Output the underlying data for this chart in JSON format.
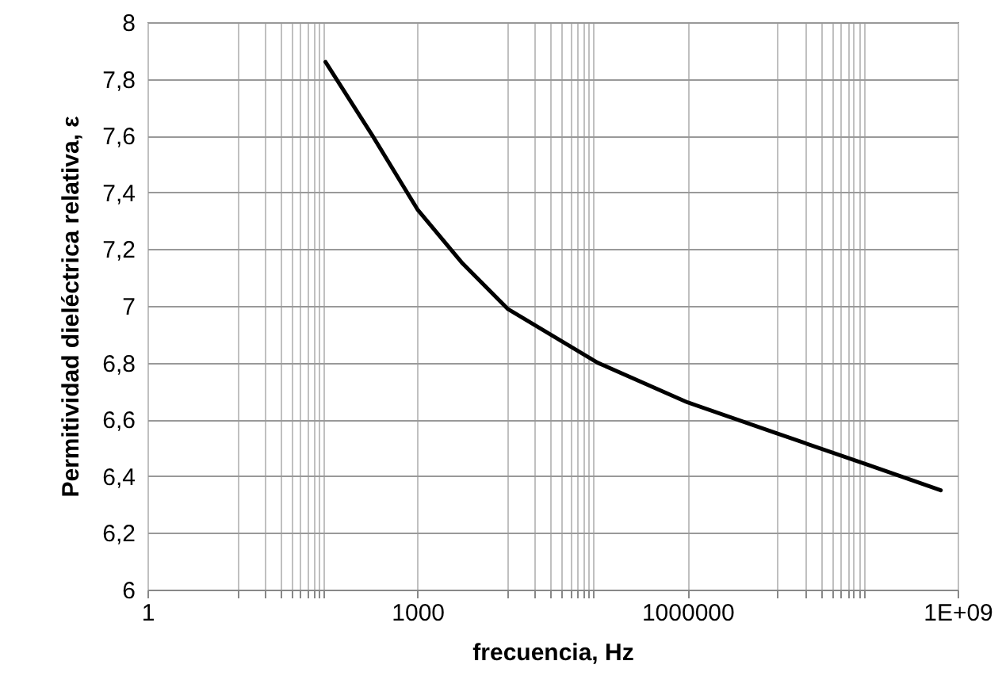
{
  "chart_data": {
    "type": "line",
    "xlabel": "frecuencia, Hz",
    "ylabel": "Permitividad dieléctrica relativa, ε",
    "x": [
      95,
      316,
      1000,
      3162,
      10000,
      100000,
      1000000,
      10000000,
      100000000,
      650000000
    ],
    "series": [
      {
        "color": "#000000",
        "values": [
          7.86,
          7.6,
          7.34,
          7.15,
          6.99,
          6.8,
          6.66,
          6.55,
          6.44,
          6.35
        ]
      }
    ],
    "log": "x",
    "xlim": [
      1,
      1000000000
    ],
    "ylim": [
      6,
      8
    ],
    "xticks": [
      1,
      {
        "value": 10,
        "label": null
      },
      {
        "value": 20,
        "label": null
      },
      {
        "value": 30,
        "label": null
      },
      {
        "value": 40,
        "label": null
      },
      {
        "value": 50,
        "label": null
      },
      {
        "value": 60,
        "label": null
      },
      {
        "value": 70,
        "label": null
      },
      {
        "value": 80,
        "label": null
      },
      {
        "value": 90,
        "label": null
      },
      1000,
      {
        "value": 10000,
        "label": null
      },
      {
        "value": 20000,
        "label": null
      },
      {
        "value": 30000,
        "label": null
      },
      {
        "value": 40000,
        "label": null
      },
      {
        "value": 50000,
        "label": null
      },
      {
        "value": 60000,
        "label": null
      },
      {
        "value": 70000,
        "label": null
      },
      {
        "value": 80000,
        "label": null
      },
      {
        "value": 90000,
        "label": null
      },
      1000000,
      {
        "value": 10000000,
        "label": null
      },
      {
        "value": 20000000,
        "label": null
      },
      {
        "value": 30000000,
        "label": null
      },
      {
        "value": 40000000,
        "label": null
      },
      {
        "value": 50000000,
        "label": null
      },
      {
        "value": 60000000,
        "label": null
      },
      {
        "value": 70000000,
        "label": null
      },
      {
        "value": 80000000,
        "label": null
      },
      {
        "value": 90000000,
        "label": null
      },
      {
        "value": 1000000000,
        "label": "1E+09"
      }
    ],
    "yticks": [
      6,
      {
        "value": 6.2,
        "label": "6,2"
      },
      {
        "value": 6.4,
        "label": "6,4"
      },
      {
        "value": 6.6,
        "label": "6,6"
      },
      {
        "value": 6.8,
        "label": "6,8"
      },
      7,
      {
        "value": 7.2,
        "label": "7,2"
      },
      {
        "value": 7.4,
        "label": "7,4"
      },
      {
        "value": 7.6,
        "label": "7,6"
      },
      {
        "value": 7.8,
        "label": "7,8"
      },
      8
    ],
    "grid": true,
    "marker": "none",
    "line_style": "solid"
  }
}
